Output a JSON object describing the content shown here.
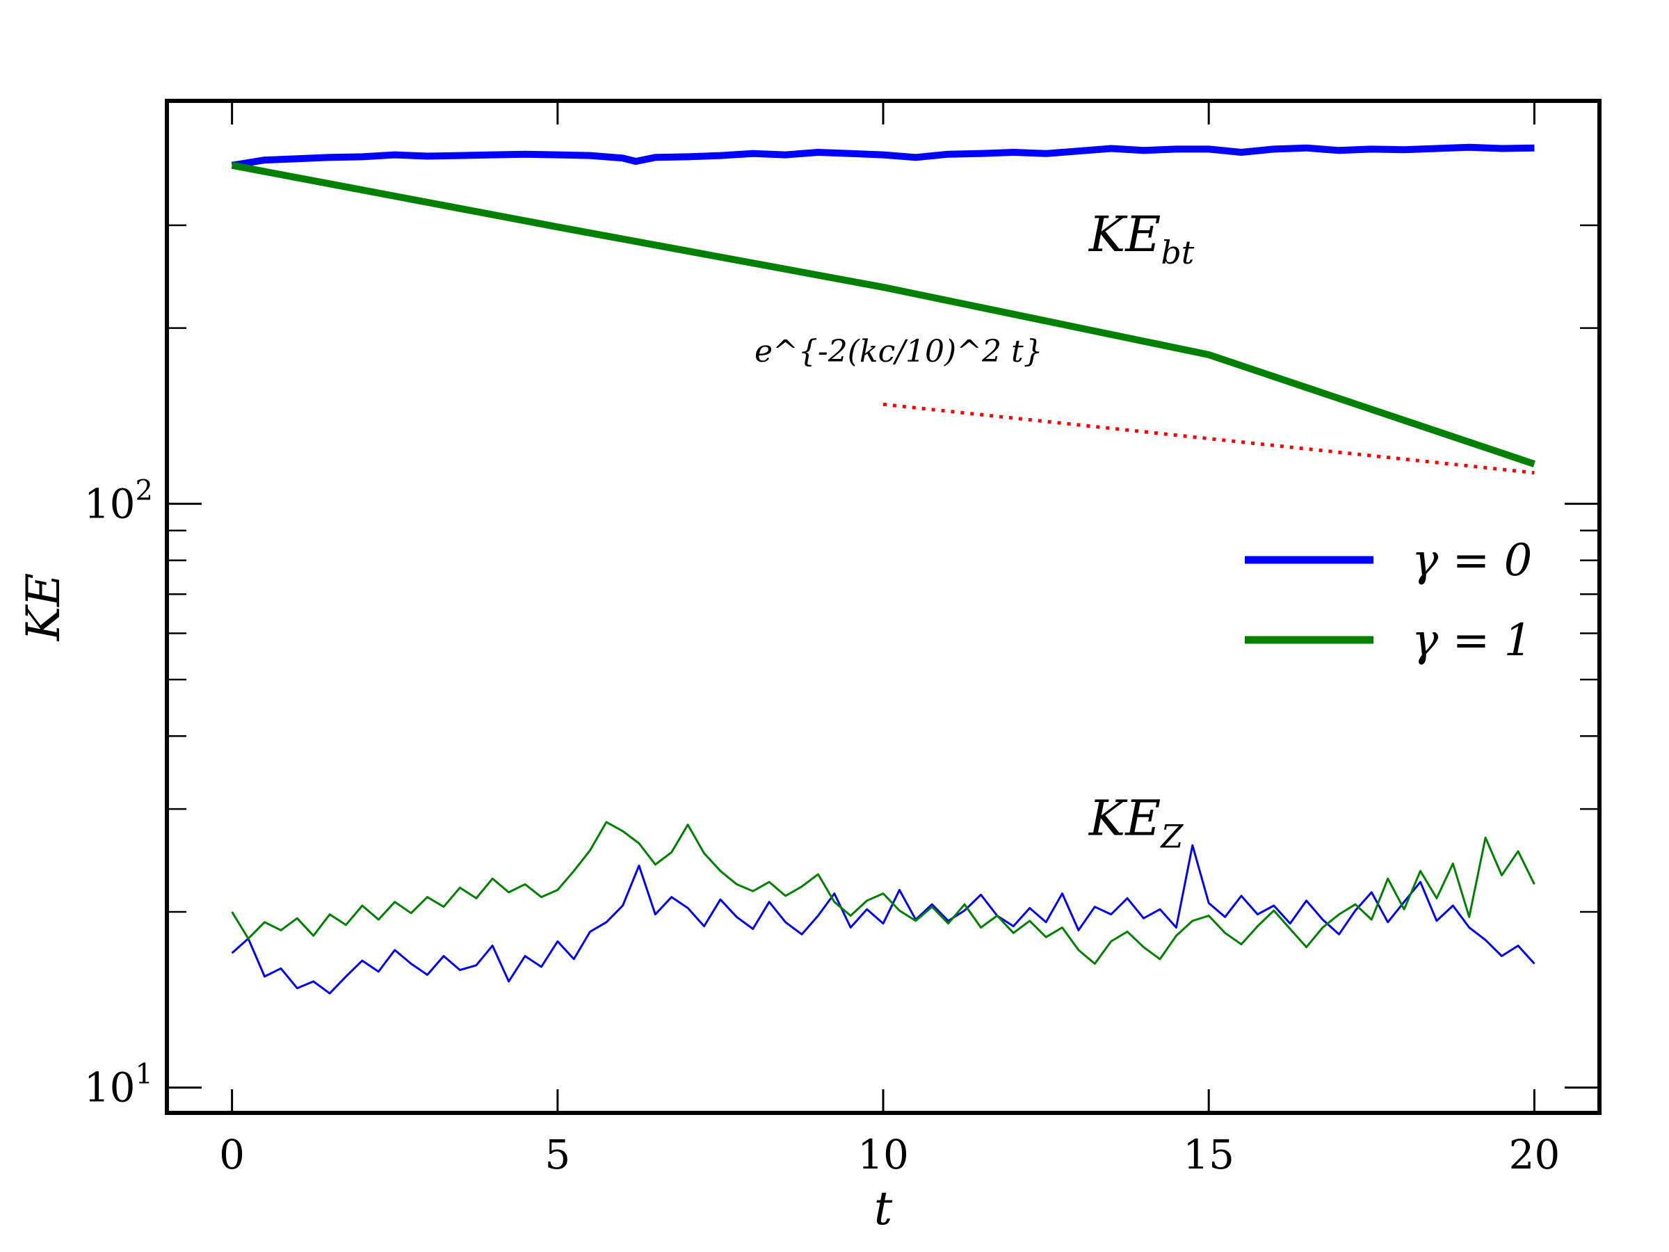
{
  "chart_data": {
    "type": "line",
    "yscale": "log",
    "xlabel": "t",
    "ylabel": "KE",
    "xlim": [
      -1,
      21
    ],
    "ylim": [
      9.05,
      490
    ],
    "x_ticks": [
      0,
      5,
      10,
      15,
      20
    ],
    "x_tick_labels": [
      "0",
      "5",
      "10",
      "15",
      "20"
    ],
    "y_major_ticks": [
      10,
      100
    ],
    "y_tick_labels": [
      {
        "base": "10",
        "exp": "1"
      },
      {
        "base": "10",
        "exp": "2"
      }
    ],
    "y_minor_ticks": [
      20,
      30,
      40,
      50,
      60,
      70,
      80,
      90,
      200,
      300
    ],
    "legend": {
      "position": "center-right",
      "entries": [
        {
          "label": "γ = 0",
          "color": "#0000ff"
        },
        {
          "label": "γ = 1",
          "color": "#008000"
        }
      ]
    },
    "annotations": {
      "ke_bt": {
        "base": "KE",
        "sub": "bt",
        "x": 13,
        "y": 290
      },
      "ke_z": {
        "base": "KE",
        "sub": "Z",
        "x": 13,
        "y": 29
      },
      "fit": {
        "text": "e^{-2(kc/10)^2 t}",
        "x": 9.3,
        "y": 115
      }
    },
    "series": [
      {
        "name": "γ = 0",
        "group": "KE_bt",
        "color": "#0000ff",
        "width": "thick",
        "x": [
          0,
          0.5,
          1,
          1.5,
          2,
          2.5,
          3,
          3.5,
          4,
          4.5,
          5,
          5.5,
          6,
          6.2,
          6.5,
          7,
          7.5,
          8,
          8.5,
          9,
          9.5,
          10,
          10.5,
          11,
          11.5,
          12,
          12.5,
          13,
          13.5,
          14,
          14.5,
          15,
          15.5,
          16,
          16.5,
          17,
          17.5,
          18,
          18.5,
          19,
          19.5,
          20
        ],
        "y": [
          380,
          388,
          390,
          392,
          393,
          396,
          394,
          395,
          396,
          397,
          396,
          395,
          391,
          386,
          392,
          393,
          395,
          398,
          396,
          400,
          398,
          396,
          392,
          397,
          398,
          400,
          398,
          402,
          406,
          403,
          405,
          405,
          400,
          405,
          407,
          403,
          405,
          404,
          406,
          408,
          406,
          407
        ]
      },
      {
        "name": "γ = 1",
        "group": "KE_bt",
        "color": "#008000",
        "width": "thick",
        "x": [
          0,
          5,
          10,
          15,
          20
        ],
        "y": [
          380,
          298,
          235,
          180,
          117
        ]
      },
      {
        "name": "γ = 0",
        "group": "KE_Z",
        "color": "#0000ff",
        "width": "thin",
        "x": [
          0,
          0.25,
          0.5,
          0.75,
          1,
          1.25,
          1.5,
          1.75,
          2,
          2.25,
          2.5,
          2.75,
          3,
          3.25,
          3.5,
          3.75,
          4,
          4.25,
          4.5,
          4.75,
          5,
          5.25,
          5.5,
          5.75,
          6,
          6.25,
          6.5,
          6.75,
          7,
          7.25,
          7.5,
          7.75,
          8,
          8.25,
          8.5,
          8.75,
          9,
          9.25,
          9.5,
          9.75,
          10,
          10.25,
          10.5,
          10.75,
          11,
          11.25,
          11.5,
          11.75,
          12,
          12.25,
          12.5,
          12.75,
          13,
          13.25,
          13.5,
          13.75,
          14,
          14.25,
          14.5,
          14.75,
          15,
          15.25,
          15.5,
          15.75,
          16,
          16.25,
          16.5,
          16.75,
          17,
          17.25,
          17.5,
          17.75,
          18,
          18.25,
          18.5,
          18.75,
          19,
          19.25,
          19.5,
          19.75,
          20
        ],
        "y": [
          17,
          18,
          15.5,
          16,
          14.8,
          15.2,
          14.5,
          15.5,
          16.5,
          15.8,
          17.2,
          16.3,
          15.6,
          16.8,
          15.9,
          16.2,
          17.5,
          15.2,
          16.8,
          16.1,
          17.8,
          16.6,
          18.5,
          19.2,
          20.5,
          24,
          19.8,
          21.2,
          20.3,
          18.9,
          21,
          19.6,
          18.7,
          20.8,
          19.2,
          18.3,
          19.7,
          21.5,
          18.8,
          20.2,
          19.1,
          21.8,
          19.4,
          20.6,
          19.3,
          20.1,
          21.4,
          19.7,
          18.9,
          20.3,
          19.2,
          21.5,
          18.6,
          20.4,
          19.8,
          21.1,
          19.5,
          20.2,
          18.8,
          26,
          20.7,
          19.6,
          21.3,
          19.8,
          20.5,
          19.1,
          20.9,
          19.4,
          18.3,
          20.1,
          21.6,
          19.2,
          20.8,
          22.5,
          19.3,
          20.5,
          18.8,
          17.9,
          16.8,
          17.5,
          16.3
        ]
      },
      {
        "name": "γ = 1",
        "group": "KE_Z",
        "color": "#008000",
        "width": "thin",
        "x": [
          0,
          0.25,
          0.5,
          0.75,
          1,
          1.25,
          1.5,
          1.75,
          2,
          2.25,
          2.5,
          2.75,
          3,
          3.25,
          3.5,
          3.75,
          4,
          4.25,
          4.5,
          4.75,
          5,
          5.25,
          5.5,
          5.75,
          6,
          6.25,
          6.5,
          6.75,
          7,
          7.25,
          7.5,
          7.75,
          8,
          8.25,
          8.5,
          8.75,
          9,
          9.25,
          9.5,
          9.75,
          10,
          10.25,
          10.5,
          10.75,
          11,
          11.25,
          11.5,
          11.75,
          12,
          12.25,
          12.5,
          12.75,
          13,
          13.25,
          13.5,
          13.75,
          14,
          14.25,
          14.5,
          14.75,
          15,
          15.25,
          15.5,
          15.75,
          16,
          16.25,
          16.5,
          16.75,
          17,
          17.25,
          17.5,
          17.75,
          18,
          18.25,
          18.5,
          18.75,
          19,
          19.25,
          19.5,
          19.75,
          20
        ],
        "y": [
          20,
          18,
          19.2,
          18.6,
          19.5,
          18.2,
          19.8,
          19,
          20.5,
          19.4,
          20.8,
          19.9,
          21.2,
          20.4,
          22,
          21.1,
          22.8,
          21.6,
          22.3,
          21.2,
          21.8,
          23.5,
          25.5,
          28.5,
          27.5,
          26.2,
          24.1,
          25.3,
          28.2,
          25.2,
          23.5,
          22.3,
          21.7,
          22.5,
          21.3,
          22.1,
          23.2,
          20.8,
          19.7,
          20.9,
          21.5,
          20.1,
          19.3,
          20.4,
          19.1,
          20.6,
          18.8,
          19.7,
          18.4,
          19.3,
          18.1,
          18.8,
          17.2,
          16.3,
          17.8,
          18.5,
          17.4,
          16.6,
          18.2,
          19.3,
          19.7,
          18.4,
          17.6,
          18.9,
          20.1,
          18.7,
          17.4,
          18.8,
          19.8,
          20.6,
          19.4,
          22.8,
          20.2,
          23.5,
          21.1,
          24.2,
          19.6,
          26.8,
          23.1,
          25.4,
          22.3
        ]
      }
    ],
    "fit_line": {
      "label": "e^{-2(kc/10)^2 t}",
      "color": "#ff0000",
      "style": "dotted",
      "x": [
        10,
        20
      ],
      "y": [
        148,
        113
      ]
    }
  }
}
